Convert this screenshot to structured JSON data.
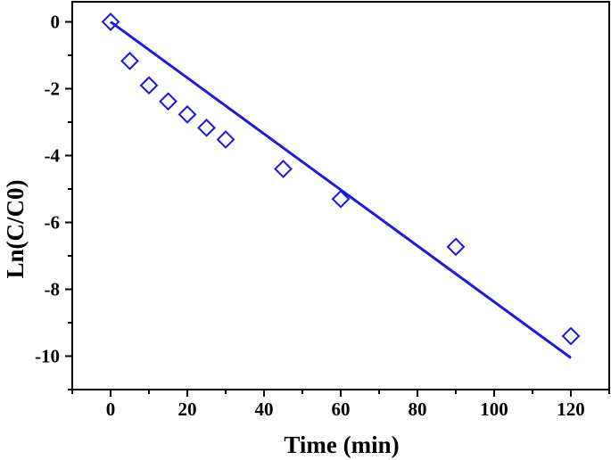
{
  "chart_data": {
    "type": "scatter",
    "title": "",
    "xlabel": "Time (min)",
    "ylabel": "Ln(C/C0)",
    "xlim": [
      -10,
      130
    ],
    "ylim": [
      -11,
      0.6
    ],
    "x_ticks": [
      0,
      20,
      40,
      60,
      80,
      100,
      120
    ],
    "y_ticks": [
      0,
      -2,
      -4,
      -6,
      -8,
      -10
    ],
    "x_tick_labels": [
      "0",
      "20",
      "40",
      "60",
      "80",
      "100",
      "120"
    ],
    "y_tick_labels": [
      "0",
      "-2",
      "-4",
      "-6",
      "-8",
      "-10"
    ],
    "grid": false,
    "legend": "none",
    "series": [
      {
        "type": "scatter",
        "marker": "open-diamond",
        "color": "#1a1adc",
        "x": [
          0,
          5,
          10,
          15,
          20,
          25,
          30,
          45,
          60,
          90,
          120
        ],
        "y": [
          0,
          -1.17,
          -1.9,
          -2.38,
          -2.77,
          -3.17,
          -3.52,
          -4.4,
          -5.3,
          -6.73,
          -9.4
        ]
      },
      {
        "type": "line",
        "color": "#1a1adc",
        "x": [
          0,
          120
        ],
        "y": [
          0,
          -10.05
        ]
      }
    ]
  }
}
